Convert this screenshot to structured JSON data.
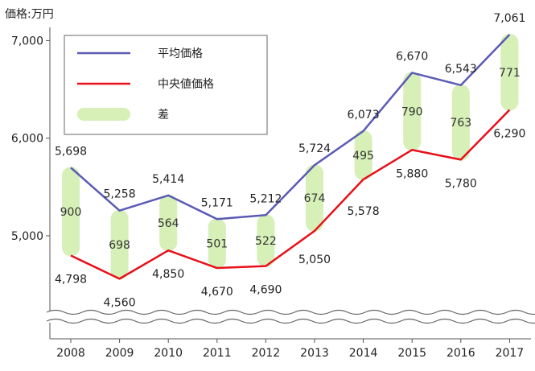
{
  "chart_data": {
    "type": "line",
    "ylabel": "価格:万円",
    "ylim": [
      4200,
      7100
    ],
    "yticks": [
      5000,
      6000,
      7000
    ],
    "ytick_labels": [
      "5,000",
      "6,000",
      "7,000"
    ],
    "categories": [
      "2008",
      "2009",
      "2010",
      "2011",
      "2012",
      "2013",
      "2014",
      "2015",
      "2016",
      "2017"
    ],
    "series": [
      {
        "name": "平均価格",
        "color": "#5b5bb5",
        "values": [
          5698,
          5258,
          5414,
          5171,
          5212,
          5724,
          6073,
          6670,
          6543,
          7061
        ],
        "labels": [
          "5,698",
          "5,258",
          "5,414",
          "5,171",
          "5,212",
          "5,724",
          "6,073",
          "6,670",
          "6,543",
          "7,061"
        ]
      },
      {
        "name": "中央値価格",
        "color": "#e8101a",
        "values": [
          4798,
          4560,
          4850,
          4670,
          4690,
          5050,
          5578,
          5880,
          5780,
          6290
        ],
        "labels": [
          "4,798",
          "4,560",
          "4,850",
          "4,670",
          "4,690",
          "5,050",
          "5,578",
          "5,880",
          "5,780",
          "6,290"
        ]
      }
    ],
    "difference": {
      "name": "差",
      "color": "#d6f0b8",
      "values": [
        900,
        698,
        564,
        501,
        522,
        674,
        495,
        790,
        763,
        771
      ]
    },
    "axis_break": true,
    "legend_placement": "top-left"
  }
}
